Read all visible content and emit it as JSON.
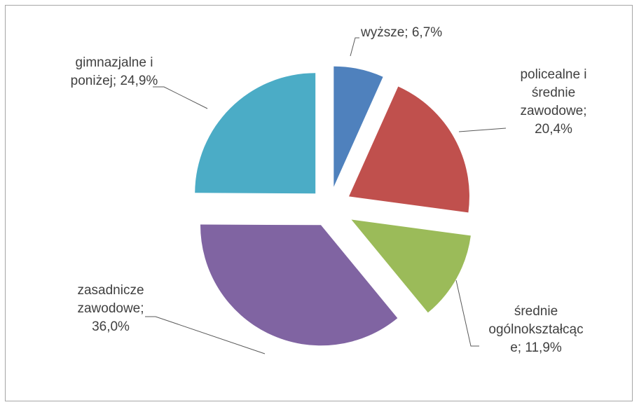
{
  "chart_data": {
    "type": "pie",
    "exploded": true,
    "categories": [
      "wyższe",
      "policealne i średnie zawodowe",
      "średnie ogólnokształcące",
      "zasadnicze zawodowe",
      "gimnazjalne i poniżej"
    ],
    "values": [
      6.7,
      20.4,
      11.9,
      36.0,
      24.9
    ],
    "unit": "%",
    "colors": [
      "#4f81bd",
      "#c0504d",
      "#9bbb59",
      "#8064a2",
      "#4bacc6"
    ],
    "data_labels": [
      [
        "wyższe; 6,7%"
      ],
      [
        "policealne i",
        "średnie",
        "zawodowe;",
        "20,4%"
      ],
      [
        "średnie",
        "ogólnokształcąc",
        "e; 11,9%"
      ],
      [
        "zasadnicze",
        "zawodowe;",
        "36,0%"
      ],
      [
        "gimnazjalne i",
        "poniżej; 24,9%"
      ]
    ],
    "legend": "none"
  }
}
